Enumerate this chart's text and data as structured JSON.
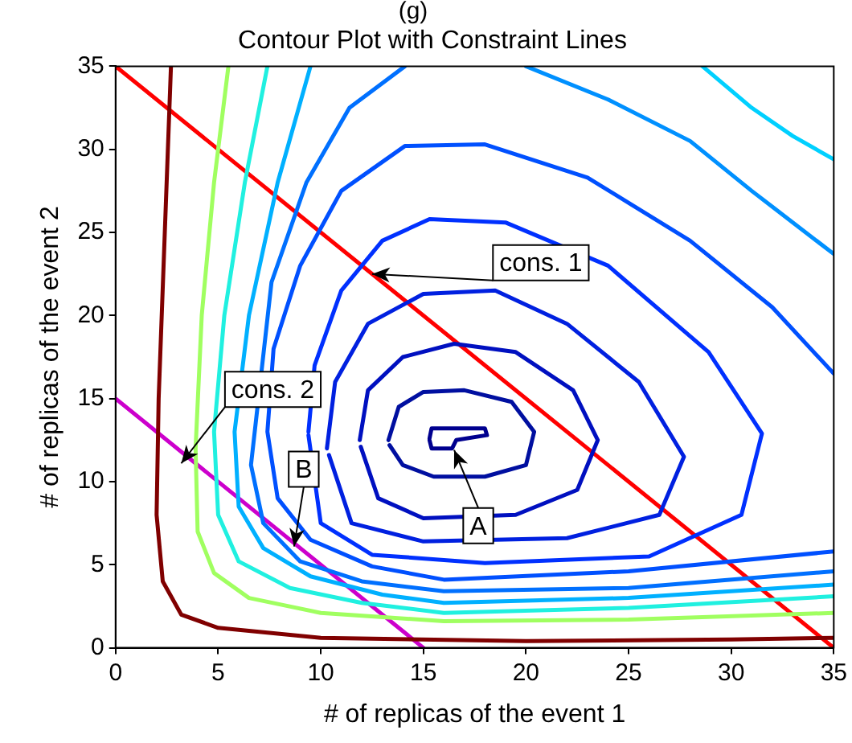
{
  "chart_data": {
    "type": "line",
    "title": "Contour Plot with Constraint Lines",
    "xlabel": "# of replicas of the event 1",
    "ylabel": "# of replicas of the event 2",
    "xlim": [
      0,
      35
    ],
    "ylim": [
      0,
      35
    ],
    "xticks": [
      0,
      5,
      10,
      15,
      20,
      25,
      30,
      35
    ],
    "yticks": [
      0,
      5,
      10,
      15,
      20,
      25,
      30,
      35
    ],
    "annotations": [
      "(g)",
      {
        "text": "cons. 1",
        "x": 12.5,
        "y": 22.5
      },
      {
        "text": "cons. 2",
        "x": 3.2,
        "y": 11.1
      },
      {
        "text": "B",
        "x": 8.7,
        "y": 6.1
      },
      {
        "text": "A",
        "x": 16.5,
        "y": 11.9
      }
    ],
    "series": [
      {
        "color": "#800000",
        "x": [
          2.7,
          2.4,
          2.1,
          2.0,
          2.3,
          3.2,
          5,
          10,
          20,
          30,
          35
        ],
        "values": [
          35,
          25,
          15,
          8,
          4,
          2,
          1.2,
          0.6,
          0.4,
          0.5,
          0.6
        ]
      },
      {
        "color": "#a0ff60",
        "x": [
          5.5,
          4.8,
          4.2,
          3.9,
          4.0,
          4.8,
          6.5,
          10,
          16,
          25,
          35
        ],
        "values": [
          35,
          28,
          20,
          12,
          7,
          4.5,
          3,
          2.1,
          1.6,
          1.7,
          2.1
        ]
      },
      {
        "color": "#20f0e0",
        "x": [
          7.4,
          6.3,
          5.3,
          4.8,
          5.0,
          6,
          8.5,
          12,
          16,
          25,
          35
        ],
        "values": [
          35,
          28,
          20,
          13,
          8,
          5.2,
          3.6,
          2.7,
          2.1,
          2.4,
          3.1
        ]
      },
      {
        "color": "#00b0ff",
        "x": [
          9.5,
          7.9,
          6.5,
          5.8,
          6.0,
          7.2,
          9.5,
          13,
          16,
          25,
          35
        ],
        "values": [
          35,
          28,
          20,
          13,
          8.5,
          6,
          4.3,
          3.2,
          2.7,
          3.0,
          3.8
        ]
      },
      {
        "color": "#0070ff",
        "x": [
          14.1,
          11.4,
          9.3,
          7.6,
          6.6,
          7.2,
          9,
          12,
          16,
          25,
          35
        ],
        "values": [
          35,
          32.5,
          28,
          22,
          11,
          7.5,
          5.2,
          4,
          3.4,
          3.6,
          4.6
        ]
      },
      {
        "color": "#0050ff",
        "x": [
          35,
          32,
          28,
          23,
          18,
          14.1,
          11,
          9,
          7.7,
          7.4,
          7.9,
          9.5,
          12.5,
          16,
          25,
          35
        ],
        "values": [
          16.5,
          20.5,
          24.5,
          28.3,
          30.3,
          30.2,
          27.5,
          23,
          18,
          13,
          9,
          6.5,
          4.9,
          4.1,
          4.6,
          5.8
        ]
      },
      {
        "color": "#00d0ff",
        "x": [
          28.6,
          31,
          33,
          35
        ],
        "values": [
          35,
          32.5,
          30.8,
          29.4
        ]
      },
      {
        "color": "#0090ff",
        "x": [
          20,
          24,
          28,
          31,
          35
        ],
        "values": [
          35,
          33,
          30.5,
          27.5,
          23.7
        ]
      },
      {
        "color": "#0030ff",
        "x": [
          9.4,
          9.7,
          11,
          13,
          15.3,
          19,
          24,
          28.9,
          31.5,
          30.5,
          26,
          18,
          12.5,
          10,
          9.4
        ],
        "values": [
          13,
          17,
          21.5,
          24.5,
          25.8,
          25.6,
          23,
          17.8,
          12.9,
          8,
          5.5,
          5.1,
          5.6,
          7.5,
          12.8
        ]
      },
      {
        "color": "#0020e0",
        "x": [
          10.3,
          10.7,
          12.3,
          15,
          18.5,
          22,
          25.5,
          27.7,
          26.5,
          22,
          15,
          11.5,
          10.4
        ],
        "values": [
          12,
          16,
          19.5,
          21.3,
          21.5,
          19.5,
          16,
          11.5,
          8,
          6.6,
          6.4,
          7.5,
          11.6
        ]
      },
      {
        "color": "#0010c0",
        "x": [
          11.9,
          12.3,
          14,
          16.5,
          19.5,
          22.3,
          23.5,
          22.5,
          19.5,
          15,
          12.8,
          11.95
        ],
        "values": [
          12.5,
          15.5,
          17.5,
          18.3,
          17.8,
          15.5,
          12.5,
          9.5,
          8,
          7.8,
          9,
          12.1
        ]
      },
      {
        "color": "#000fa0",
        "x": [
          13.3,
          13.8,
          15,
          17,
          19.3,
          20.4,
          20,
          18,
          15.5,
          14,
          13.35
        ],
        "values": [
          12.5,
          14.5,
          15.4,
          15.5,
          14.8,
          13,
          11,
          10.3,
          10.3,
          11,
          12.2
        ]
      },
      {
        "color": "#00008f",
        "x": [
          15.3,
          15.4,
          18.0,
          18.1,
          16.6,
          16.4,
          15.4,
          15.3
        ],
        "values": [
          12.6,
          13.2,
          13.2,
          12.8,
          12.5,
          12.0,
          12.0,
          12.5
        ]
      },
      {
        "color": "#ff0000",
        "x": [
          0,
          35
        ],
        "values": [
          35,
          0
        ]
      },
      {
        "color": "#cc00cc",
        "x": [
          0,
          15
        ],
        "values": [
          15,
          0
        ]
      }
    ]
  }
}
